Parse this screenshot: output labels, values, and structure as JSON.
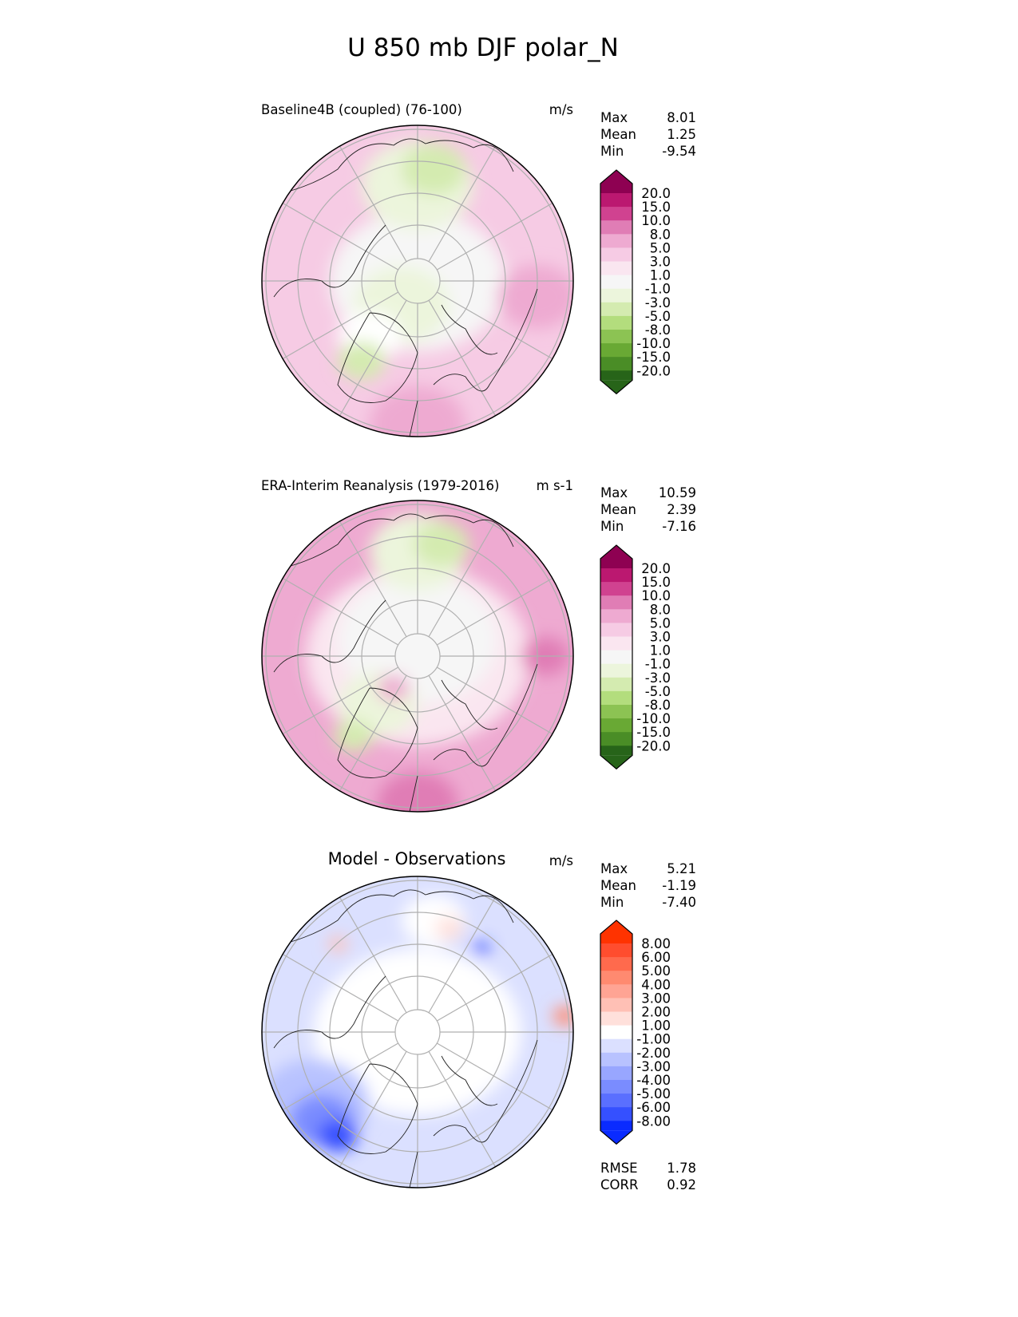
{
  "title": "U 850 mb DJF polar_N",
  "panels": [
    {
      "title": "Baseline4B (coupled) (76-100)",
      "units": "m/s",
      "stats": {
        "max_label": "Max",
        "max": "8.01",
        "mean_label": "Mean",
        "mean": "1.25",
        "min_label": "Min",
        "min": "-9.54"
      },
      "colorbar": {
        "labels": [
          "20.0",
          "15.0",
          "10.0",
          "8.0",
          "5.0",
          "3.0",
          "1.0",
          "-1.0",
          "-3.0",
          "-5.0",
          "-8.0",
          "-10.0",
          "-15.0",
          "-20.0"
        ],
        "colors": [
          "#8e0152",
          "#bb1870",
          "#d04290",
          "#e07db5",
          "#eeaad1",
          "#f6cbe4",
          "#fae6f0",
          "#f6f6f6",
          "#ecf5dc",
          "#d4ebb0",
          "#b3dd7d",
          "#8cc353",
          "#69a934",
          "#4a8d26",
          "#276419"
        ]
      }
    },
    {
      "title": "ERA-Interim Reanalysis (1979-2016)",
      "units": "m s-1",
      "stats": {
        "max_label": "Max",
        "max": "10.59",
        "mean_label": "Mean",
        "mean": "2.39",
        "min_label": "Min",
        "min": "-7.16"
      },
      "colorbar": {
        "labels": [
          "20.0",
          "15.0",
          "10.0",
          "8.0",
          "5.0",
          "3.0",
          "1.0",
          "-1.0",
          "-3.0",
          "-5.0",
          "-8.0",
          "-10.0",
          "-15.0",
          "-20.0"
        ],
        "colors": [
          "#8e0152",
          "#bb1870",
          "#d04290",
          "#e07db5",
          "#eeaad1",
          "#f6cbe4",
          "#fae6f0",
          "#f6f6f6",
          "#ecf5dc",
          "#d4ebb0",
          "#b3dd7d",
          "#8cc353",
          "#69a934",
          "#4a8d26",
          "#276419"
        ]
      }
    },
    {
      "title": "Model - Observations",
      "units": "m/s",
      "stats": {
        "max_label": "Max",
        "max": "5.21",
        "mean_label": "Mean",
        "mean": "-1.19",
        "min_label": "Min",
        "min": "-7.40"
      },
      "colorbar": {
        "labels": [
          "8.00",
          "6.00",
          "5.00",
          "4.00",
          "3.00",
          "2.00",
          "1.00",
          "-1.00",
          "-2.00",
          "-3.00",
          "-4.00",
          "-5.00",
          "-6.00",
          "-8.00"
        ],
        "colors": [
          "#ff3300",
          "#ff4d2e",
          "#ff6a4d",
          "#ff8a70",
          "#ffa494",
          "#ffc0b5",
          "#ffe0db",
          "#ffffff",
          "#dbe0ff",
          "#b8c2ff",
          "#98a6ff",
          "#7a8cff",
          "#5a6fff",
          "#3550ff",
          "#0a2bff"
        ]
      },
      "metrics": {
        "rmse_label": "RMSE",
        "rmse": "1.78",
        "corr_label": "CORR",
        "corr": "0.92"
      }
    }
  ]
}
